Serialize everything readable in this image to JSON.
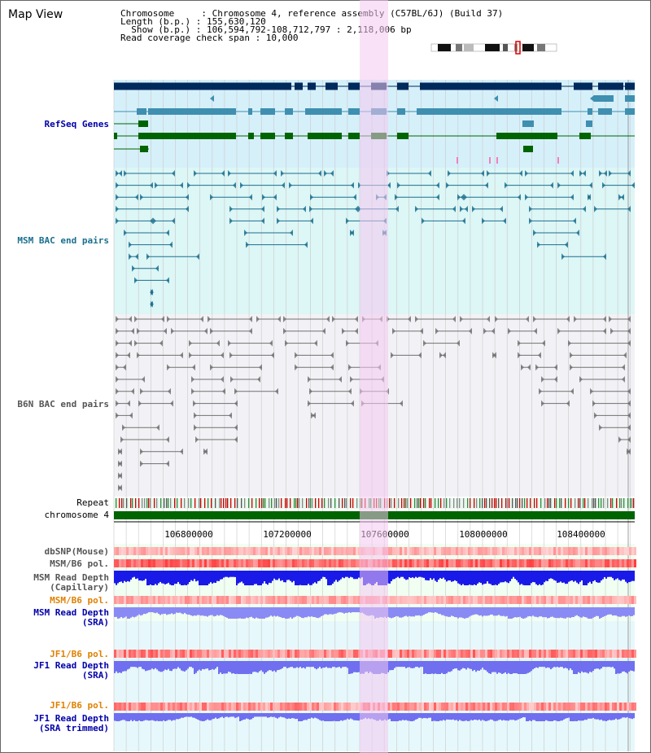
{
  "title": "Map View",
  "info": {
    "chromosome": "Chromosome     : Chromosome 4, reference assembly (C57BL/6J) (Build 37)",
    "length": "Length (b.p.) : 155,630,120",
    "show": "  Show (b.p.) : 106,594,792-108,712,797 : 2,118,006 bp",
    "coverage": "Read coverage check span : 10,000"
  },
  "tracks": {
    "refseq": "RefSeq Genes",
    "msm_bac": "MSM BAC end pairs",
    "b6n_bac": "B6N BAC end pairs",
    "repeat": "Repeat",
    "chromosome": "chromosome 4",
    "dbsnp": "dbSNP(Mouse)",
    "msm_b6_pol": "MSM/B6 pol.",
    "msm_depth_cap_1": "MSM Read Depth",
    "msm_depth_cap_2": "(Capillary)",
    "msm_b6_pol_2": "MSM/B6 pol.",
    "msm_depth_sra_1": "MSM Read Depth",
    "msm_depth_sra_2": "(SRA)",
    "jf1_pol_1": "JF1/B6 pol.",
    "jf1_depth_sra_1": "JF1 Read Depth",
    "jf1_depth_sra_2": "(SRA)",
    "jf1_pol_2": "JF1/B6 pol.",
    "jf1_depth_trim_1": "JF1 Read Depth",
    "jf1_depth_trim_2": "(SRA trimmed)"
  },
  "axis": {
    "ticks": [
      "106800000",
      "107200000",
      "107600000",
      "108000000",
      "108400000"
    ]
  },
  "colors": {
    "highlight": "#f4c8f0",
    "refseq_bg": "#d6f0fa",
    "msm_bg": "#ddf6f6",
    "b6n_bg": "#f2f2f6",
    "dark_blue": "#002a5c",
    "mid_blue": "#3f8fb0",
    "green": "#006400",
    "msm_line": "#1a6f8f",
    "b6n_line": "#707070",
    "label_blue": "#0000aa",
    "label_orange": "#e08000",
    "label_gray": "#555555",
    "label_msm": "#1a6f8f"
  }
}
